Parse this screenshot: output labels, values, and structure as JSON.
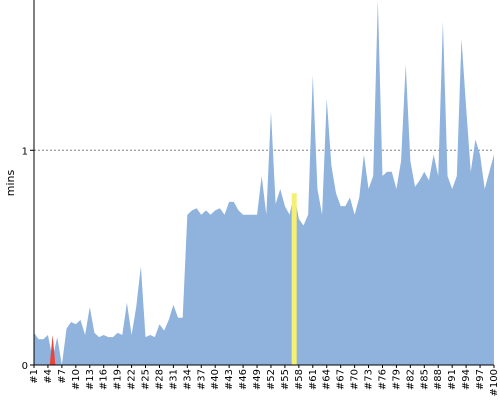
{
  "chart_data": {
    "type": "area",
    "ylabel": "mins",
    "xlabel": "",
    "title": "",
    "ylim": [
      0,
      1.7
    ],
    "yticks": [
      0,
      1
    ],
    "grid": {
      "y": true,
      "x": false,
      "style": "dotted"
    },
    "legend": "none",
    "x": [
      "#1",
      "#2",
      "#3",
      "#4",
      "#5",
      "#6",
      "#7",
      "#8",
      "#9",
      "#10",
      "#11",
      "#12",
      "#13",
      "#14",
      "#15",
      "#16",
      "#17",
      "#18",
      "#19",
      "#20",
      "#21",
      "#22",
      "#23",
      "#24",
      "#25",
      "#26",
      "#27",
      "#28",
      "#29",
      "#30",
      "#31",
      "#32",
      "#33",
      "#34",
      "#35",
      "#36",
      "#37",
      "#38",
      "#39",
      "#40",
      "#41",
      "#42",
      "#43",
      "#44",
      "#45",
      "#46",
      "#47",
      "#48",
      "#49",
      "#50",
      "#51",
      "#52",
      "#53",
      "#54",
      "#55",
      "#56",
      "#57",
      "#58",
      "#59",
      "#60",
      "#61",
      "#62",
      "#63",
      "#64",
      "#65",
      "#66",
      "#67",
      "#68",
      "#69",
      "#70",
      "#71",
      "#72",
      "#73",
      "#74",
      "#75",
      "#76",
      "#77",
      "#78",
      "#79",
      "#80",
      "#81",
      "#82",
      "#83",
      "#84",
      "#85",
      "#86",
      "#87",
      "#88",
      "#89",
      "#90",
      "#91",
      "#92",
      "#93",
      "#94",
      "#95",
      "#96",
      "#97",
      "#98",
      "#99",
      "#100"
    ],
    "xtick_labels": [
      "#1",
      "#4",
      "#7",
      "#10",
      "#13",
      "#16",
      "#19",
      "#22",
      "#25",
      "#28",
      "#31",
      "#34",
      "#37",
      "#40",
      "#43",
      "#46",
      "#49",
      "#52",
      "#55",
      "#58",
      "#61",
      "#64",
      "#67",
      "#70",
      "#73",
      "#76",
      "#79",
      "#82",
      "#85",
      "#88",
      "#91",
      "#94",
      "#97",
      "#100"
    ],
    "values": [
      0.15,
      0.12,
      0.12,
      0.14,
      0.03,
      0.13,
      0.0,
      0.17,
      0.2,
      0.19,
      0.21,
      0.14,
      0.27,
      0.15,
      0.13,
      0.14,
      0.13,
      0.13,
      0.15,
      0.14,
      0.29,
      0.14,
      0.27,
      0.46,
      0.13,
      0.14,
      0.13,
      0.19,
      0.16,
      0.21,
      0.28,
      0.22,
      0.22,
      0.7,
      0.72,
      0.73,
      0.7,
      0.72,
      0.7,
      0.72,
      0.73,
      0.7,
      0.76,
      0.76,
      0.72,
      0.7,
      0.7,
      0.7,
      0.7,
      0.88,
      0.7,
      1.18,
      0.75,
      0.82,
      0.74,
      0.7,
      0.8,
      0.68,
      0.65,
      0.7,
      1.35,
      0.82,
      0.7,
      1.24,
      0.93,
      0.8,
      0.74,
      0.74,
      0.78,
      0.7,
      0.78,
      0.98,
      0.82,
      0.88,
      1.7,
      0.88,
      0.9,
      0.9,
      0.82,
      0.95,
      1.4,
      0.95,
      0.83,
      0.86,
      0.9,
      0.86,
      0.98,
      0.88,
      1.6,
      0.88,
      0.82,
      0.88,
      1.52,
      1.2,
      0.9,
      1.05,
      0.98,
      0.82,
      0.9,
      0.98
    ],
    "highlights": [
      {
        "index": 4,
        "color": "#e8453c"
      },
      {
        "index": 56,
        "color": "#f5f074"
      }
    ],
    "colors": {
      "area": "#8fb3dc",
      "axis": "#000000",
      "grid": "#808080"
    }
  }
}
